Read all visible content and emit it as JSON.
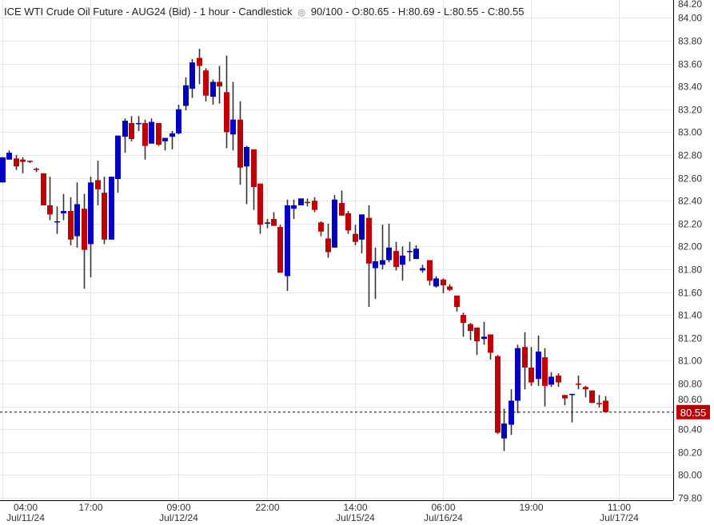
{
  "header": {
    "title": "ICE WTI Crude Oil Future - AUG24 (Bid) - 1 hour - Candlestick",
    "eye_icon": "eye-icon",
    "count": "90/100",
    "ohlc_text": "O:80.65 - H:80.69 - L:80.55 - C:80.55"
  },
  "colors": {
    "up": "#0000c0",
    "down": "#c00000",
    "wick": "#333333",
    "grid": "#e6e6e6",
    "last_price_bg": "#c00000"
  },
  "chart_data": {
    "type": "candlestick",
    "ylim": [
      79.8,
      84.2
    ],
    "y_ticks": [
      "79.80",
      "80.00",
      "80.20",
      "80.40",
      "80.60",
      "80.80",
      "81.00",
      "81.20",
      "81.40",
      "81.60",
      "81.80",
      "82.00",
      "82.20",
      "82.40",
      "82.60",
      "82.80",
      "83.00",
      "83.20",
      "83.40",
      "83.60",
      "83.80",
      "84.00",
      "84.20"
    ],
    "x_ticks": [
      {
        "index": 0,
        "time": "04:00",
        "date": "Jul/11/24"
      },
      {
        "index": 13,
        "time": "17:00",
        "date": ""
      },
      {
        "index": 26,
        "time": "09:00",
        "date": "Jul/12/24"
      },
      {
        "index": 39,
        "time": "22:00",
        "date": ""
      },
      {
        "index": 52,
        "time": "14:00",
        "date": "Jul/15/24"
      },
      {
        "index": 65,
        "time": "06:00",
        "date": "Jul/16/24"
      },
      {
        "index": 78,
        "time": "19:00",
        "date": ""
      },
      {
        "index": 91,
        "time": "11:00",
        "date": "Jul/17/24"
      }
    ],
    "grid": true,
    "last_price": "80.55",
    "ohlc_fields": [
      "open",
      "high",
      "low",
      "close"
    ],
    "ohlc": [
      [
        82.56,
        82.78,
        82.56,
        82.78
      ],
      [
        82.76,
        82.84,
        82.76,
        82.82
      ],
      [
        82.77,
        82.8,
        82.67,
        82.7
      ],
      [
        82.76,
        82.78,
        82.64,
        82.74
      ],
      [
        82.75,
        82.75,
        82.73,
        82.74
      ],
      [
        82.68,
        82.69,
        82.65,
        82.67
      ],
      [
        82.64,
        82.64,
        82.36,
        82.36
      ],
      [
        82.36,
        82.61,
        82.23,
        82.28
      ],
      [
        82.22,
        82.35,
        82.11,
        82.22
      ],
      [
        82.29,
        82.46,
        82.23,
        82.31
      ],
      [
        82.31,
        82.43,
        82.01,
        82.06
      ],
      [
        82.09,
        82.56,
        81.99,
        82.37
      ],
      [
        82.33,
        82.46,
        81.63,
        81.97
      ],
      [
        82.02,
        82.61,
        81.73,
        82.56
      ],
      [
        82.58,
        82.75,
        82.36,
        82.5
      ],
      [
        82.47,
        82.61,
        82.02,
        82.06
      ],
      [
        82.06,
        82.61,
        82.06,
        82.61
      ],
      [
        82.59,
        82.97,
        82.47,
        82.97
      ],
      [
        82.96,
        83.12,
        82.82,
        83.1
      ],
      [
        83.08,
        83.14,
        82.92,
        82.94
      ],
      [
        83.08,
        83.14,
        83.01,
        83.08
      ],
      [
        83.08,
        83.11,
        82.76,
        82.88
      ],
      [
        82.9,
        83.12,
        82.9,
        83.09
      ],
      [
        83.08,
        83.08,
        82.88,
        82.89
      ],
      [
        82.92,
        82.95,
        82.84,
        82.95
      ],
      [
        82.96,
        83.01,
        82.85,
        82.99
      ],
      [
        82.99,
        83.24,
        82.98,
        83.2
      ],
      [
        83.23,
        83.48,
        83.19,
        83.41
      ],
      [
        83.38,
        83.64,
        83.3,
        83.61
      ],
      [
        83.65,
        83.73,
        83.42,
        83.58
      ],
      [
        83.54,
        83.56,
        83.27,
        83.32
      ],
      [
        83.31,
        83.46,
        83.24,
        83.44
      ],
      [
        83.44,
        83.58,
        83.25,
        83.4
      ],
      [
        83.35,
        83.67,
        82.86,
        83.0
      ],
      [
        82.98,
        83.44,
        82.84,
        83.11
      ],
      [
        83.11,
        83.27,
        82.54,
        82.69
      ],
      [
        82.7,
        82.88,
        82.37,
        82.87
      ],
      [
        82.85,
        82.85,
        82.32,
        82.52
      ],
      [
        82.55,
        82.55,
        82.11,
        82.19
      ],
      [
        82.2,
        82.24,
        82.16,
        82.21
      ],
      [
        82.24,
        82.3,
        82.18,
        82.18
      ],
      [
        82.17,
        82.19,
        81.77,
        81.77
      ],
      [
        81.74,
        82.41,
        81.61,
        82.36
      ],
      [
        82.33,
        82.41,
        82.24,
        82.36
      ],
      [
        82.36,
        82.42,
        82.36,
        82.42
      ],
      [
        82.39,
        82.42,
        82.35,
        82.38
      ],
      [
        82.4,
        82.43,
        82.3,
        82.32
      ],
      [
        82.21,
        82.22,
        82.09,
        82.13
      ],
      [
        82.07,
        82.2,
        81.9,
        81.95
      ],
      [
        81.99,
        82.45,
        81.99,
        82.41
      ],
      [
        82.38,
        82.49,
        82.27,
        82.27
      ],
      [
        82.29,
        82.31,
        82.11,
        82.14
      ],
      [
        82.11,
        82.19,
        82.01,
        82.04
      ],
      [
        82.06,
        82.28,
        81.94,
        82.28
      ],
      [
        82.25,
        82.36,
        81.47,
        81.85
      ],
      [
        81.81,
        81.99,
        81.54,
        81.87
      ],
      [
        81.84,
        82.19,
        81.8,
        81.88
      ],
      [
        81.88,
        82.2,
        81.86,
        81.99
      ],
      [
        81.96,
        82.04,
        81.79,
        81.82
      ],
      [
        81.84,
        82.0,
        81.7,
        81.92
      ],
      [
        81.96,
        82.04,
        81.87,
        81.96
      ],
      [
        81.89,
        82.01,
        81.89,
        81.98
      ],
      [
        81.79,
        81.84,
        81.77,
        81.81
      ],
      [
        81.88,
        81.88,
        81.66,
        81.7
      ],
      [
        81.65,
        81.74,
        81.64,
        81.72
      ],
      [
        81.71,
        81.72,
        81.59,
        81.66
      ],
      [
        81.65,
        81.67,
        81.61,
        81.62
      ],
      [
        81.57,
        81.57,
        81.43,
        81.47
      ],
      [
        81.4,
        81.42,
        81.21,
        81.33
      ],
      [
        81.32,
        81.33,
        81.18,
        81.26
      ],
      [
        81.29,
        81.29,
        81.05,
        81.17
      ],
      [
        81.19,
        81.34,
        81.14,
        81.21
      ],
      [
        81.23,
        81.23,
        81.01,
        81.07
      ],
      [
        81.04,
        81.05,
        80.36,
        80.37
      ],
      [
        80.32,
        80.58,
        80.21,
        80.45
      ],
      [
        80.44,
        80.75,
        80.35,
        80.65
      ],
      [
        80.65,
        81.14,
        80.54,
        81.11
      ],
      [
        81.12,
        81.25,
        80.75,
        80.94
      ],
      [
        80.94,
        81.12,
        80.78,
        80.81
      ],
      [
        80.84,
        81.22,
        80.78,
        81.08
      ],
      [
        81.03,
        81.11,
        80.6,
        80.78
      ],
      [
        80.79,
        80.9,
        80.77,
        80.86
      ],
      [
        80.87,
        80.89,
        80.77,
        80.81
      ],
      [
        80.7,
        80.7,
        80.61,
        80.67
      ],
      [
        80.7,
        80.71,
        80.46,
        80.71
      ],
      [
        80.8,
        80.87,
        80.75,
        80.79
      ],
      [
        80.77,
        80.78,
        80.68,
        80.75
      ],
      [
        80.74,
        80.74,
        80.63,
        80.63
      ],
      [
        80.63,
        80.7,
        80.59,
        80.62
      ],
      [
        80.65,
        80.69,
        80.55,
        80.55
      ]
    ]
  }
}
